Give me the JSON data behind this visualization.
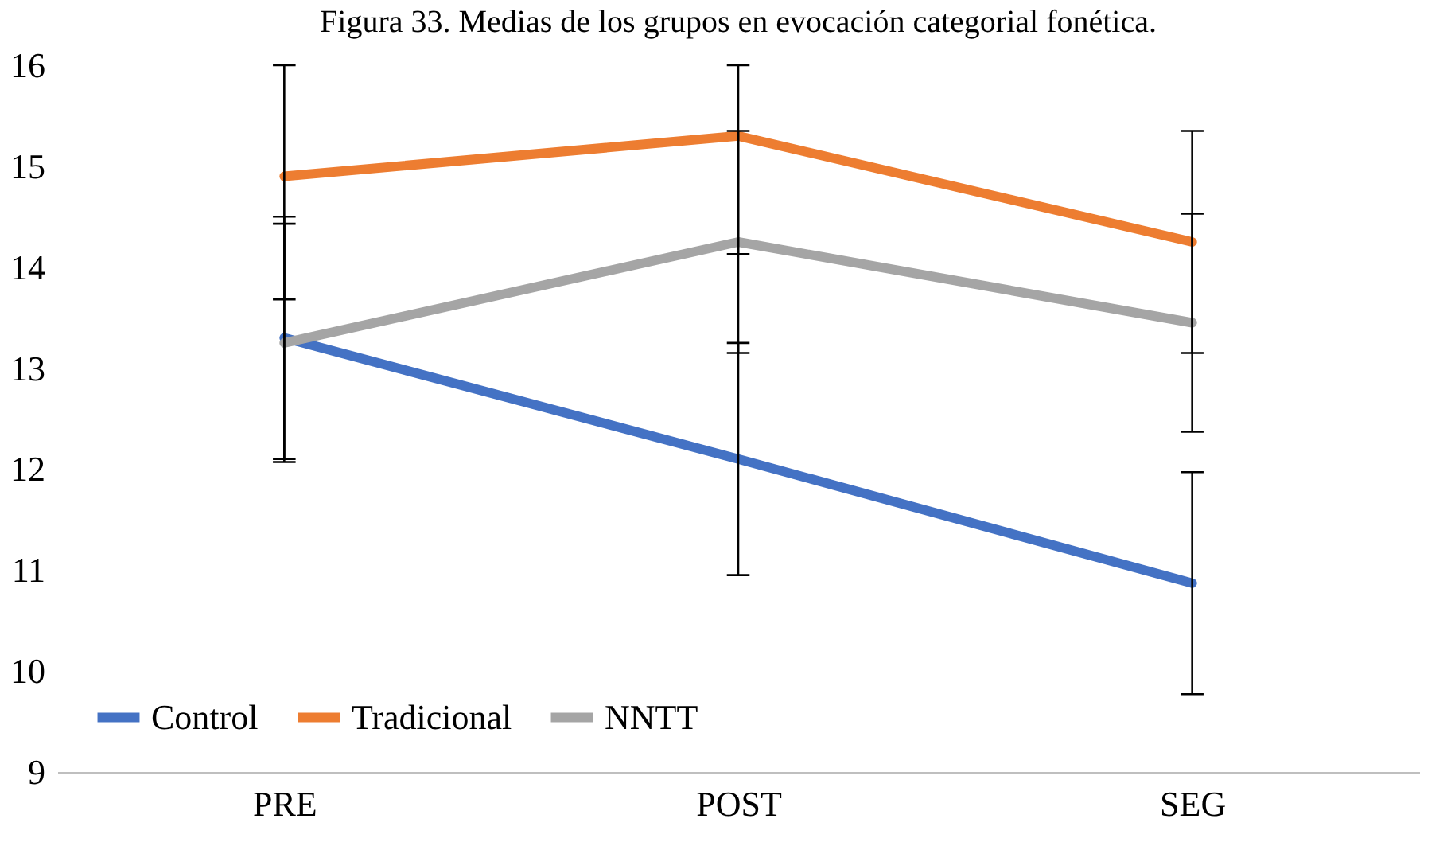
{
  "chart_data": {
    "type": "line",
    "title": "Figura 33. Medias de los grupos en evocación categorial fonética.",
    "categories": [
      "PRE",
      "POST",
      "SEG"
    ],
    "series": [
      {
        "name": "Control",
        "color": "#4472c4",
        "values": [
          13.3,
          12.1,
          10.87
        ],
        "errors": [
          1.2,
          1.15,
          1.1
        ]
      },
      {
        "name": "Tradicional",
        "color": "#ed7d31",
        "values": [
          14.9,
          15.3,
          14.25
        ],
        "errors": [
          [
            13.68,
            16
          ],
          [
            14.13,
            16
          ],
          1.1
        ]
      },
      {
        "name": "NNTT",
        "color": "#a5a5a5",
        "values": [
          13.25,
          14.25,
          13.45
        ],
        "errors": [
          1.18,
          1.1,
          1.08
        ]
      }
    ],
    "ylim": [
      9,
      16
    ],
    "yticks": [
      9,
      10,
      11,
      12,
      13,
      14,
      15,
      16
    ],
    "grid": false,
    "legend": "bottom left",
    "marker": "none",
    "line_style": "solid"
  }
}
